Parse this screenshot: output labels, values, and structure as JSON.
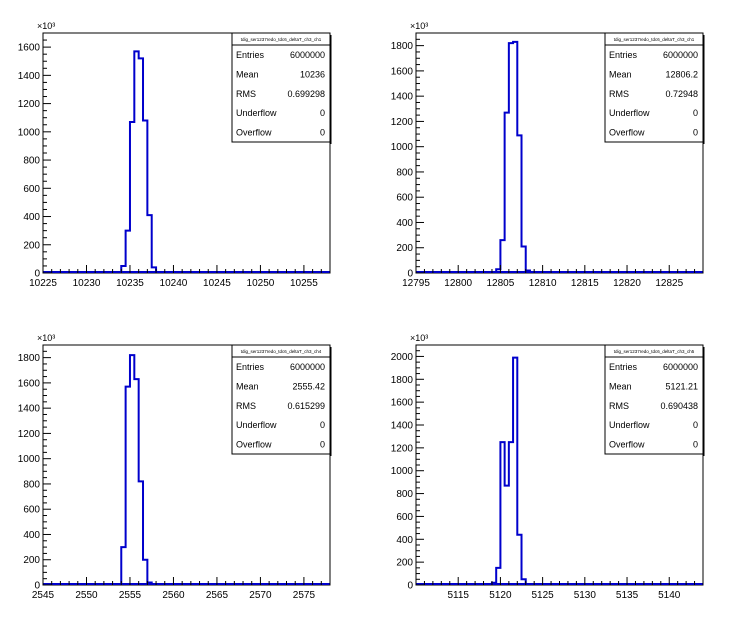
{
  "chart_data": [
    {
      "type": "histogram",
      "xlim": [
        10225,
        10258
      ],
      "ylim": [
        0,
        1700
      ],
      "x_ticks": [
        10225,
        10230,
        10235,
        10240,
        10245,
        10250,
        10255
      ],
      "y_ticks": [
        0,
        200,
        400,
        600,
        800,
        1000,
        1200,
        1400,
        1600
      ],
      "y_multiplier": "×10³",
      "bin_width": 0.5,
      "bins": [
        [
          10234,
          50
        ],
        [
          10234.5,
          300
        ],
        [
          10235,
          1070
        ],
        [
          10235.5,
          1570
        ],
        [
          10236,
          1520
        ],
        [
          10236.5,
          1080
        ],
        [
          10237,
          410
        ],
        [
          10237.5,
          40
        ]
      ],
      "series_color": "#0000cc",
      "stats": {
        "title": "tdig_ser1237redo_tdc6_deltaT_ch3_ch1",
        "rows": [
          {
            "label": "Entries",
            "value": "6000000"
          },
          {
            "label": "Mean",
            "value": "10236"
          },
          {
            "label": "RMS",
            "value": "0.699298"
          },
          {
            "label": "Underflow",
            "value": "0"
          },
          {
            "label": "Overflow",
            "value": "0"
          }
        ]
      }
    },
    {
      "type": "histogram",
      "xlim": [
        12795,
        12829
      ],
      "ylim": [
        0,
        1900
      ],
      "x_ticks": [
        12795,
        12800,
        12805,
        12810,
        12815,
        12820,
        12825
      ],
      "y_ticks": [
        0,
        200,
        400,
        600,
        800,
        1000,
        1200,
        1400,
        1600,
        1800
      ],
      "y_multiplier": "×10³",
      "bin_width": 0.5,
      "bins": [
        [
          12804.5,
          30
        ],
        [
          12805,
          260
        ],
        [
          12805.5,
          1270
        ],
        [
          12806,
          1820
        ],
        [
          12806.5,
          1830
        ],
        [
          12807,
          1090
        ],
        [
          12807.5,
          210
        ],
        [
          12808,
          20
        ]
      ],
      "series_color": "#0000cc",
      "stats": {
        "title": "tdig_ser1237redo_tdc6_deltaT_ch3_ch1",
        "rows": [
          {
            "label": "Entries",
            "value": "6000000"
          },
          {
            "label": "Mean",
            "value": "12806.2"
          },
          {
            "label": "RMS",
            "value": "0.72948"
          },
          {
            "label": "Underflow",
            "value": "0"
          },
          {
            "label": "Overflow",
            "value": "0"
          }
        ]
      }
    },
    {
      "type": "histogram",
      "xlim": [
        2545,
        2578
      ],
      "ylim": [
        0,
        1900
      ],
      "x_ticks": [
        2545,
        2550,
        2555,
        2560,
        2565,
        2570,
        2575
      ],
      "y_ticks": [
        0,
        200,
        400,
        600,
        800,
        1000,
        1200,
        1400,
        1600,
        1800
      ],
      "y_multiplier": "×10³",
      "bin_width": 0.5,
      "bins": [
        [
          2554,
          300
        ],
        [
          2554.5,
          1570
        ],
        [
          2555,
          1820
        ],
        [
          2555.5,
          1630
        ],
        [
          2556,
          820
        ],
        [
          2556.5,
          200
        ],
        [
          2557,
          20
        ]
      ],
      "series_color": "#0000cc",
      "stats": {
        "title": "tdig_ser1237redo_tdc6_deltaT_ch3_ch4",
        "rows": [
          {
            "label": "Entries",
            "value": "6000000"
          },
          {
            "label": "Mean",
            "value": "2555.42"
          },
          {
            "label": "RMS",
            "value": "0.615299"
          },
          {
            "label": "Underflow",
            "value": "0"
          },
          {
            "label": "Overflow",
            "value": "0"
          }
        ]
      }
    },
    {
      "type": "histogram",
      "xlim": [
        5110,
        5144
      ],
      "ylim": [
        0,
        2100
      ],
      "x_ticks": [
        5115,
        5120,
        5125,
        5130,
        5135,
        5140
      ],
      "y_ticks": [
        0,
        200,
        400,
        600,
        800,
        1000,
        1200,
        1400,
        1600,
        1800,
        2000
      ],
      "y_multiplier": "×10³",
      "bin_width": 0.5,
      "bins": [
        [
          5119,
          20
        ],
        [
          5119.5,
          150
        ],
        [
          5120,
          1250
        ],
        [
          5120.5,
          870
        ],
        [
          5121,
          1250
        ],
        [
          5121.5,
          1990
        ],
        [
          5122,
          440
        ],
        [
          5122.5,
          50
        ]
      ],
      "series_color": "#0000cc",
      "stats": {
        "title": "tdig_ser1237redo_tdc6_deltaT_ch3_ch5",
        "rows": [
          {
            "label": "Entries",
            "value": "6000000"
          },
          {
            "label": "Mean",
            "value": "5121.21"
          },
          {
            "label": "RMS",
            "value": "0.690438"
          },
          {
            "label": "Underflow",
            "value": "0"
          },
          {
            "label": "Overflow",
            "value": "0"
          }
        ]
      }
    }
  ]
}
